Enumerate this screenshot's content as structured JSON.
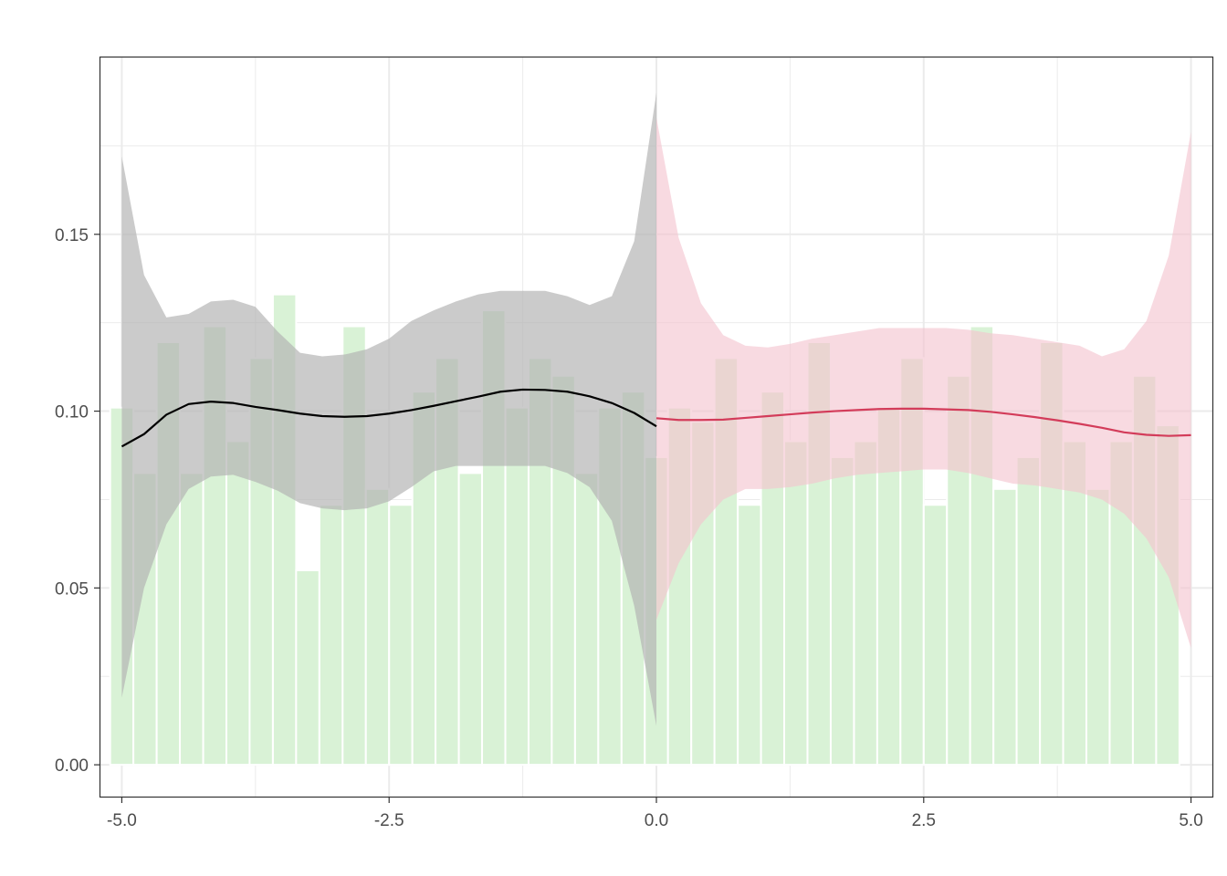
{
  "chart_data": {
    "type": "bar",
    "title": "",
    "xlabel": "",
    "ylabel": "",
    "xlim": [
      -5.2,
      5.2
    ],
    "ylim": [
      -0.009,
      0.2
    ],
    "grid": true,
    "x_ticks": [
      -5.0,
      -2.5,
      0.0,
      2.5,
      5.0
    ],
    "x_tick_labels": [
      "-5.0",
      "-2.5",
      "0.0",
      "2.5",
      "5.0"
    ],
    "y_ticks": [
      0.0,
      0.05,
      0.1,
      0.15
    ],
    "y_tick_labels": [
      "0.00",
      "0.05",
      "0.10",
      "0.15"
    ],
    "colors": {
      "histogram": "#d9f2d6",
      "left_band": "#b3b3b3",
      "left_line": "#000000",
      "right_band": "#f4c4cf",
      "right_line": "#d33c5a",
      "grid": "#ebebeb",
      "axis": "#333333"
    },
    "histogram": {
      "bin_width": 0.2174,
      "centers": [
        -5.0,
        -4.783,
        -4.565,
        -4.348,
        -4.13,
        -3.913,
        -3.696,
        -3.478,
        -3.261,
        -3.043,
        -2.826,
        -2.609,
        -2.391,
        -2.174,
        -1.957,
        -1.739,
        -1.522,
        -1.304,
        -1.087,
        -0.87,
        -0.652,
        -0.435,
        -0.217,
        0.0,
        0.217,
        0.435,
        0.652,
        0.87,
        1.087,
        1.304,
        1.522,
        1.739,
        1.957,
        2.174,
        2.391,
        2.609,
        2.826,
        3.043,
        3.261,
        3.478,
        3.696,
        3.913,
        4.13,
        4.348,
        4.565,
        4.783,
        5.0
      ],
      "values": [
        0.101,
        0.0825,
        0.1195,
        0.0825,
        0.124,
        0.0915,
        0.115,
        0.133,
        0.055,
        0.0735,
        0.124,
        0.078,
        0.0735,
        0.1055,
        0.115,
        0.0825,
        0.1285,
        0.101,
        0.115,
        0.11,
        0.0825,
        0.101,
        0.1055,
        0.087,
        0.101,
        0.097,
        0.115,
        0.0735,
        0.1055,
        0.0915,
        0.1195,
        0.087,
        0.0915,
        0.101,
        0.115,
        0.0735,
        0.11,
        0.124,
        0.078,
        0.087,
        0.1195,
        0.0915,
        0.078,
        0.0915,
        0.11,
        0.096,
        0.0
      ]
    },
    "series": [
      {
        "x": [
          -5.0,
          -4.792,
          -4.583,
          -4.375,
          -4.167,
          -3.958,
          -3.75,
          -3.542,
          -3.333,
          -3.125,
          -2.917,
          -2.708,
          -2.5,
          -2.292,
          -2.083,
          -1.875,
          -1.667,
          -1.458,
          -1.25,
          -1.042,
          -0.833,
          -0.625,
          -0.417,
          -0.208,
          0.0
        ],
        "fit": [
          0.09,
          0.0935,
          0.099,
          0.102,
          0.1027,
          0.1023,
          0.1012,
          0.1003,
          0.0993,
          0.0986,
          0.0984,
          0.0986,
          0.0993,
          0.1003,
          0.1015,
          0.1028,
          0.1041,
          0.1055,
          0.1061,
          0.106,
          0.1055,
          0.1042,
          0.1023,
          0.0995,
          0.0957
        ],
        "lower": [
          0.019,
          0.05,
          0.068,
          0.078,
          0.0815,
          0.082,
          0.08,
          0.0775,
          0.074,
          0.0725,
          0.072,
          0.0725,
          0.0745,
          0.0785,
          0.083,
          0.0845,
          0.0845,
          0.0845,
          0.0845,
          0.0845,
          0.0825,
          0.0785,
          0.069,
          0.045,
          0.011
        ],
        "upper": [
          0.172,
          0.1385,
          0.1265,
          0.1275,
          0.131,
          0.1315,
          0.1295,
          0.1225,
          0.1165,
          0.1155,
          0.116,
          0.1175,
          0.1205,
          0.1255,
          0.1285,
          0.131,
          0.133,
          0.134,
          0.134,
          0.134,
          0.1325,
          0.13,
          0.1325,
          0.148,
          0.19
        ]
      },
      {
        "x": [
          0.0,
          0.208,
          0.417,
          0.625,
          0.833,
          1.042,
          1.25,
          1.458,
          1.667,
          1.875,
          2.083,
          2.292,
          2.5,
          2.708,
          2.917,
          3.125,
          3.333,
          3.542,
          3.75,
          3.958,
          4.167,
          4.375,
          4.583,
          4.792,
          5.0
        ],
        "fit": [
          0.098,
          0.0975,
          0.0975,
          0.0976,
          0.0981,
          0.0986,
          0.0991,
          0.0996,
          0.1,
          0.1003,
          0.1006,
          0.1007,
          0.1007,
          0.1005,
          0.1003,
          0.0998,
          0.0991,
          0.0983,
          0.0974,
          0.0964,
          0.0953,
          0.094,
          0.0933,
          0.093,
          0.0932
        ],
        "lower": [
          0.041,
          0.057,
          0.068,
          0.075,
          0.078,
          0.078,
          0.0785,
          0.0795,
          0.081,
          0.082,
          0.0825,
          0.083,
          0.0835,
          0.0835,
          0.0825,
          0.081,
          0.0795,
          0.079,
          0.078,
          0.077,
          0.075,
          0.071,
          0.064,
          0.053,
          0.033
        ],
        "upper": [
          0.183,
          0.149,
          0.1305,
          0.1215,
          0.1185,
          0.118,
          0.119,
          0.1205,
          0.1215,
          0.1225,
          0.1235,
          0.1235,
          0.1235,
          0.1235,
          0.123,
          0.122,
          0.1215,
          0.1205,
          0.1195,
          0.1185,
          0.1155,
          0.1175,
          0.1255,
          0.144,
          0.179
        ]
      }
    ]
  }
}
